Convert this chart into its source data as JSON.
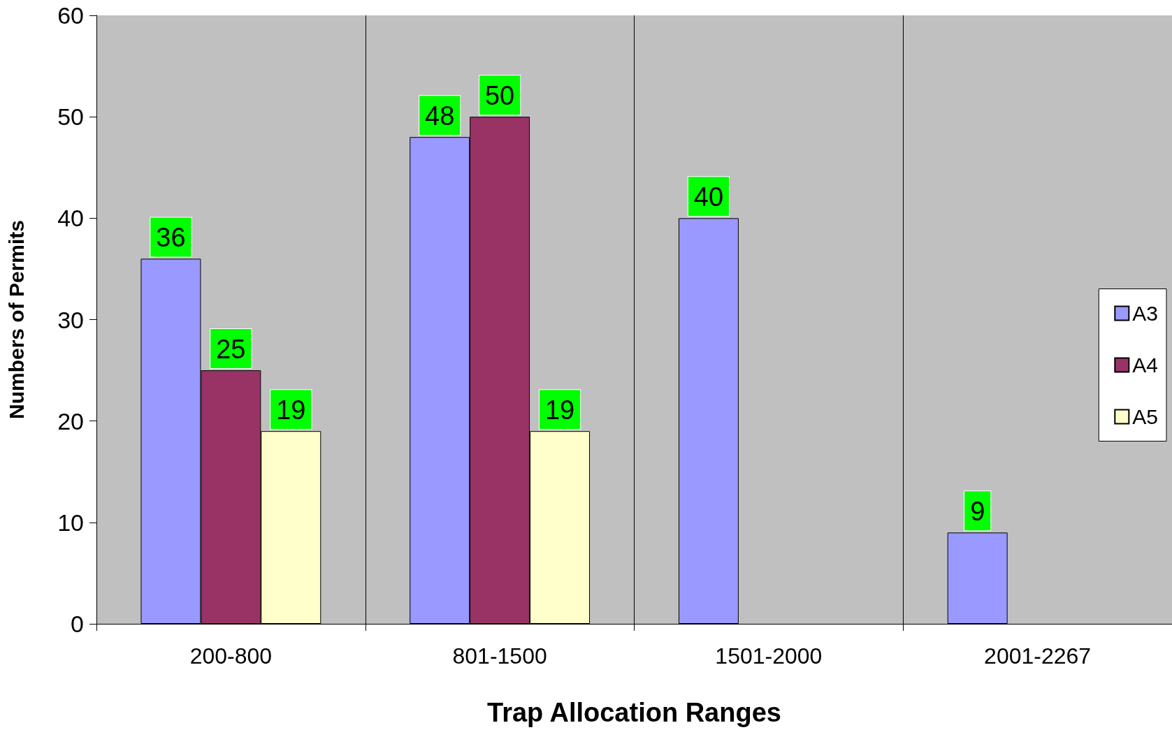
{
  "chart_data": {
    "type": "bar",
    "xlabel": "Trap Allocation Ranges",
    "ylabel": "Numbers of Permits",
    "categories": [
      "200-800",
      "801-1500",
      "1501-2000",
      "2001-2267"
    ],
    "series": [
      {
        "name": "A3",
        "color": "#9999ff",
        "values": [
          36,
          48,
          40,
          9
        ]
      },
      {
        "name": "A4",
        "color": "#993366",
        "values": [
          25,
          50,
          null,
          null
        ]
      },
      {
        "name": "A5",
        "color": "#ffffcc",
        "values": [
          19,
          19,
          null,
          null
        ]
      }
    ],
    "ylim": [
      0,
      60
    ],
    "yticks": [
      0,
      10,
      20,
      30,
      40,
      50,
      60
    ],
    "grid": "x",
    "legend": "right",
    "data_labels": true
  }
}
